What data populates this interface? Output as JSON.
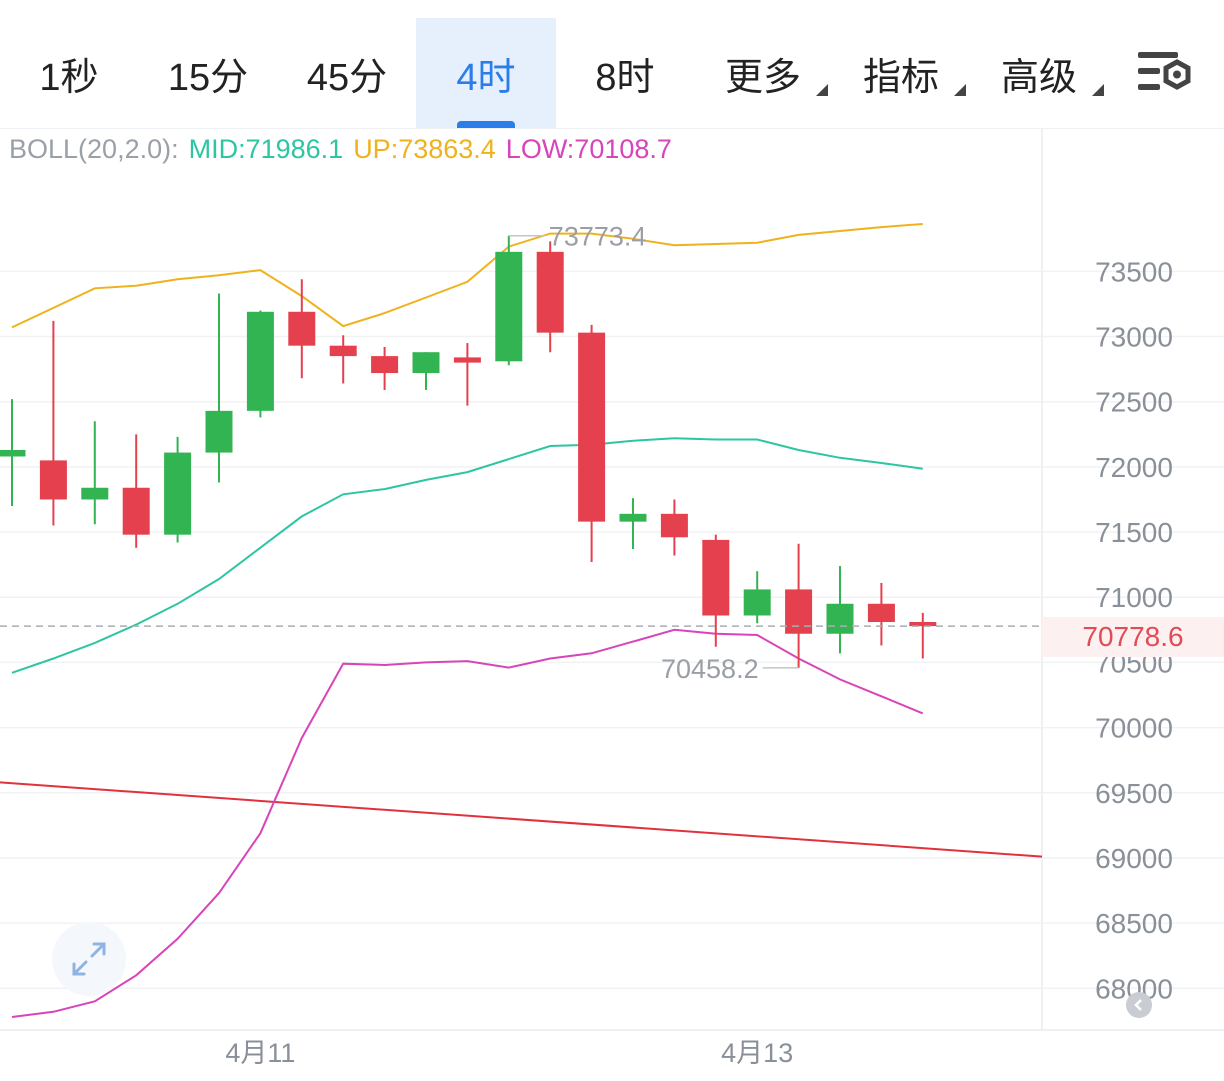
{
  "tabs": [
    {
      "label": "1秒",
      "active": false,
      "dropdown": false
    },
    {
      "label": "15分",
      "active": false,
      "dropdown": false
    },
    {
      "label": "45分",
      "active": false,
      "dropdown": false
    },
    {
      "label": "4时",
      "active": true,
      "dropdown": false
    },
    {
      "label": "8时",
      "active": false,
      "dropdown": false
    },
    {
      "label": "更多",
      "active": false,
      "dropdown": true
    },
    {
      "label": "指标",
      "active": false,
      "dropdown": true
    },
    {
      "label": "高级",
      "active": false,
      "dropdown": true
    }
  ],
  "toolbar": {
    "settings_icon": "chart-settings-icon"
  },
  "legend": {
    "name": "BOLL(20,2.0):",
    "mid": "MID:71986.1",
    "up": "UP:73863.4",
    "low": "LOW:70108.7"
  },
  "colors": {
    "up_candle": "#33b452",
    "down_candle": "#e5404e",
    "mid_line": "#2ec5a2",
    "up_line": "#f0b21c",
    "low_line": "#d844b9",
    "trend_line": "#e0313c",
    "accent": "#2b7de9",
    "last_price": "#e04b55"
  },
  "chart_data": {
    "type": "candlestick",
    "x_labels": [
      {
        "index": 6,
        "label": "4月11"
      },
      {
        "index": 18,
        "label": "4月13"
      }
    ],
    "y_ticks": [
      73500,
      73000,
      72500,
      72000,
      71500,
      71000,
      70500,
      70000,
      69500,
      69000,
      68500,
      68000
    ],
    "ylim": [
      67680,
      74600
    ],
    "candles": [
      {
        "o": 72080,
        "h": 72520,
        "l": 71700,
        "c": 72130
      },
      {
        "o": 72050,
        "h": 73120,
        "l": 71550,
        "c": 71750
      },
      {
        "o": 71750,
        "h": 72350,
        "l": 71560,
        "c": 71840
      },
      {
        "o": 71840,
        "h": 72250,
        "l": 71380,
        "c": 71480
      },
      {
        "o": 71480,
        "h": 72230,
        "l": 71420,
        "c": 72110
      },
      {
        "o": 72110,
        "h": 73330,
        "l": 71880,
        "c": 72430
      },
      {
        "o": 72430,
        "h": 73200,
        "l": 72380,
        "c": 73190
      },
      {
        "o": 73190,
        "h": 73440,
        "l": 72680,
        "c": 72930
      },
      {
        "o": 72930,
        "h": 73010,
        "l": 72640,
        "c": 72850
      },
      {
        "o": 72850,
        "h": 72920,
        "l": 72590,
        "c": 72720
      },
      {
        "o": 72720,
        "h": 72880,
        "l": 72590,
        "c": 72880
      },
      {
        "o": 72840,
        "h": 72950,
        "l": 72470,
        "c": 72800
      },
      {
        "o": 72810,
        "h": 73773.4,
        "l": 72780,
        "c": 73650
      },
      {
        "o": 73650,
        "h": 73730,
        "l": 72880,
        "c": 73030
      },
      {
        "o": 73030,
        "h": 73090,
        "l": 71270,
        "c": 71580
      },
      {
        "o": 71580,
        "h": 71760,
        "l": 71370,
        "c": 71640
      },
      {
        "o": 71640,
        "h": 71750,
        "l": 71320,
        "c": 71460
      },
      {
        "o": 71440,
        "h": 71480,
        "l": 70620,
        "c": 70860
      },
      {
        "o": 70860,
        "h": 71200,
        "l": 70800,
        "c": 71060
      },
      {
        "o": 71060,
        "h": 71410,
        "l": 70458.2,
        "c": 70720
      },
      {
        "o": 70720,
        "h": 71240,
        "l": 70570,
        "c": 70950
      },
      {
        "o": 70950,
        "h": 71110,
        "l": 70630,
        "c": 70810
      },
      {
        "o": 70810,
        "h": 70880,
        "l": 70530,
        "c": 70778.6
      }
    ],
    "series": [
      {
        "name": "MID",
        "values": [
          70420,
          70530,
          70650,
          70790,
          70950,
          71140,
          71380,
          71620,
          71790,
          71830,
          71900,
          71960,
          72060,
          72160,
          72170,
          72200,
          72220,
          72210,
          72210,
          72130,
          72070,
          72030,
          71986.1
        ]
      },
      {
        "name": "UP",
        "values": [
          73070,
          73220,
          73370,
          73390,
          73440,
          73470,
          73510,
          73310,
          73080,
          73180,
          73300,
          73420,
          73690,
          73790,
          73790,
          73750,
          73700,
          73710,
          73720,
          73780,
          73810,
          73840,
          73863.4
        ]
      },
      {
        "name": "LOW",
        "values": [
          67780,
          67820,
          67900,
          68100,
          68380,
          68730,
          69190,
          69920,
          70490,
          70480,
          70500,
          70510,
          70460,
          70530,
          70570,
          70660,
          70750,
          70720,
          70710,
          70530,
          70370,
          70240,
          70108.7
        ]
      }
    ],
    "trend_line": {
      "from": {
        "index": 0,
        "value": 69580
      },
      "to": {
        "index": 25,
        "value": 69010
      }
    },
    "annotations": [
      {
        "label": "73773.4",
        "index": 12,
        "value": 73773.4
      },
      {
        "label": "70458.2",
        "index": 19,
        "value": 70458.2
      }
    ],
    "last_price": {
      "label": "70778.6",
      "value": 70778.6
    }
  }
}
